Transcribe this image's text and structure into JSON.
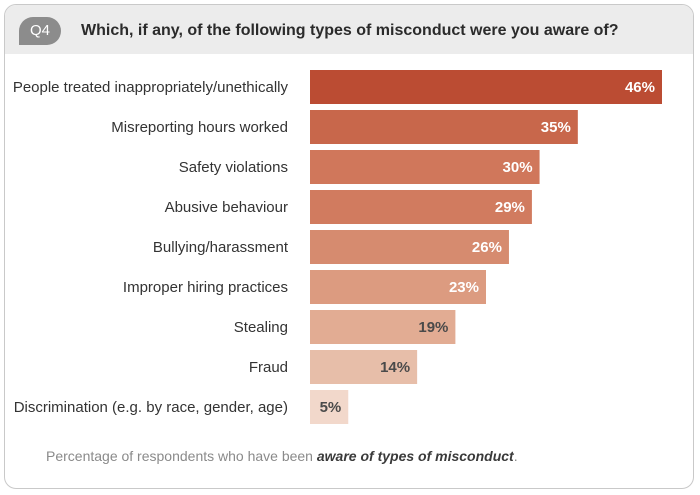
{
  "header": {
    "badge": "Q4",
    "title": "Which, if any, of the following types of misconduct were you aware of?"
  },
  "footnote": {
    "prefix": "Percentage of respondents who have been ",
    "emphasis": "aware of types of misconduct",
    "suffix": "."
  },
  "chart_data": {
    "type": "bar",
    "orientation": "horizontal",
    "title": "Which, if any, of the following types of misconduct were you aware of?",
    "categories": [
      "People treated inappropriately/unethically",
      "Misreporting hours worked",
      "Safety violations",
      "Abusive behaviour",
      "Bullying/harassment",
      "Improper hiring practices",
      "Stealing",
      "Fraud",
      "Discrimination (e.g. by race, gender, age)"
    ],
    "values": [
      46,
      35,
      30,
      29,
      26,
      23,
      19,
      14,
      5
    ],
    "value_labels": [
      "46%",
      "35%",
      "30%",
      "29%",
      "26%",
      "23%",
      "19%",
      "14%",
      "5%"
    ],
    "colors": [
      "#bb4c33",
      "#c8674b",
      "#d0775b",
      "#d17b5f",
      "#d68b6f",
      "#dc9b80",
      "#e2ac93",
      "#e7bea9",
      "#f2d8cb"
    ],
    "label_colors": [
      "#ffffff",
      "#ffffff",
      "#ffffff",
      "#ffffff",
      "#ffffff",
      "#ffffff",
      "#4a4a4a",
      "#4a4a4a",
      "#4a4a4a"
    ],
    "xlim": [
      0,
      46
    ],
    "grid": false,
    "legend": "none"
  }
}
